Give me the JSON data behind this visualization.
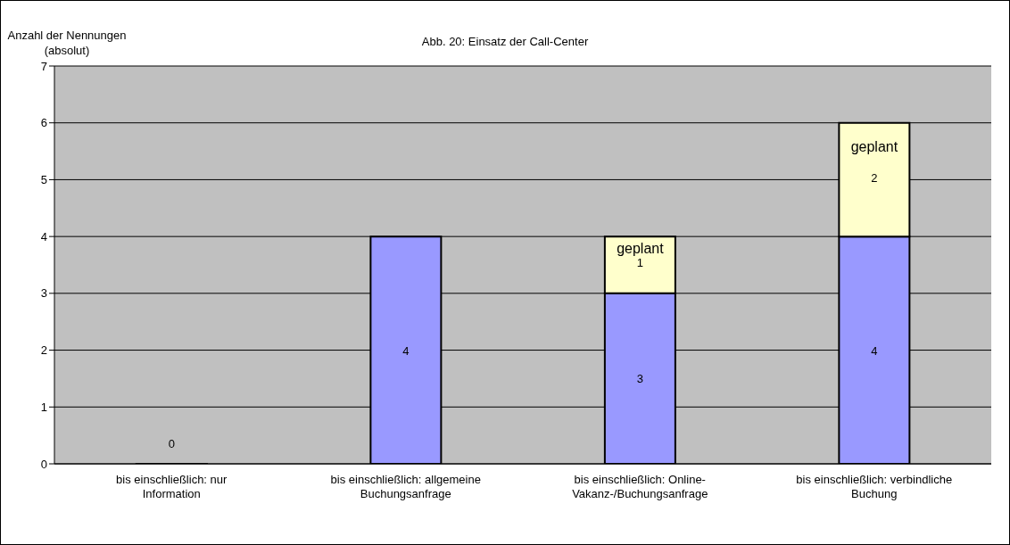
{
  "chart_data": {
    "type": "bar",
    "title": "Abb. 20: Einsatz der Call-Center",
    "ylabel": "Anzahl der Nennungen (absolut)",
    "categories": [
      "bis einschließlich: nur Information",
      "bis einschließlich: allgemeine Buchungsanfrage",
      "bis einschließlich: Online-Vakanz-/Buchungsanfrage",
      "bis einschließlich: verbindliche Buchung"
    ],
    "series": [
      {
        "color": "#9999ff",
        "values": [
          0,
          4,
          3,
          4
        ]
      },
      {
        "name": "geplant",
        "color": "#ffffcc",
        "values": [
          null,
          null,
          1,
          2
        ]
      }
    ],
    "stacked": true,
    "ylim": [
      0,
      7
    ],
    "yticks": [
      0,
      1,
      2,
      3,
      4,
      5,
      6,
      7
    ],
    "grid": "y",
    "data_labels": true
  }
}
